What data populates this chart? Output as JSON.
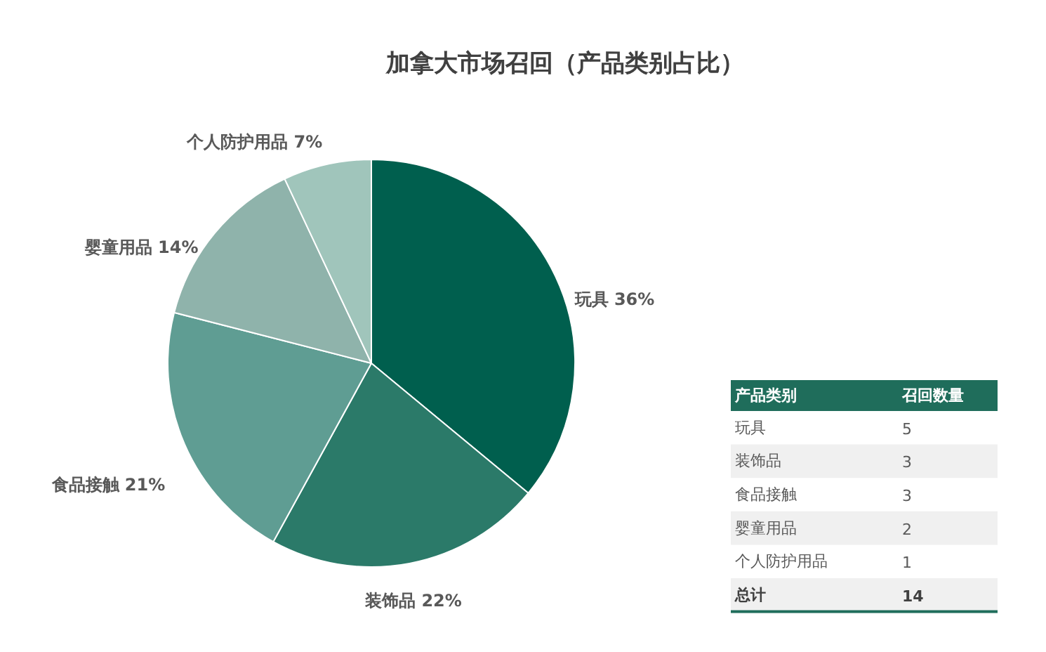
{
  "chart_data": [
    {
      "type": "pie",
      "title": "加拿大市场召回（产品类别占比）",
      "categories": [
        "玩具",
        "装饰品",
        "食品接触",
        "婴童用品",
        "个人防护用品"
      ],
      "values": [
        36,
        22,
        21,
        14,
        7
      ],
      "colors": [
        "#005f4e",
        "#2b7a69",
        "#5f9d93",
        "#8fb3ab",
        "#a0c5bb"
      ],
      "value_labels": [
        "36%",
        "22%",
        "21%",
        "14%",
        "7%"
      ]
    },
    {
      "type": "other",
      "xlabel": "产品类别",
      "ylabel": "召回数量",
      "categories": [
        "玩具",
        "装饰品",
        "食品接触",
        "婴童用品",
        "个人防护用品"
      ],
      "values": [
        5,
        3,
        3,
        2,
        1
      ],
      "data_labels": true,
      "annotations": [
        "总计"
      ],
      "totals": [
        "14"
      ]
    }
  ]
}
